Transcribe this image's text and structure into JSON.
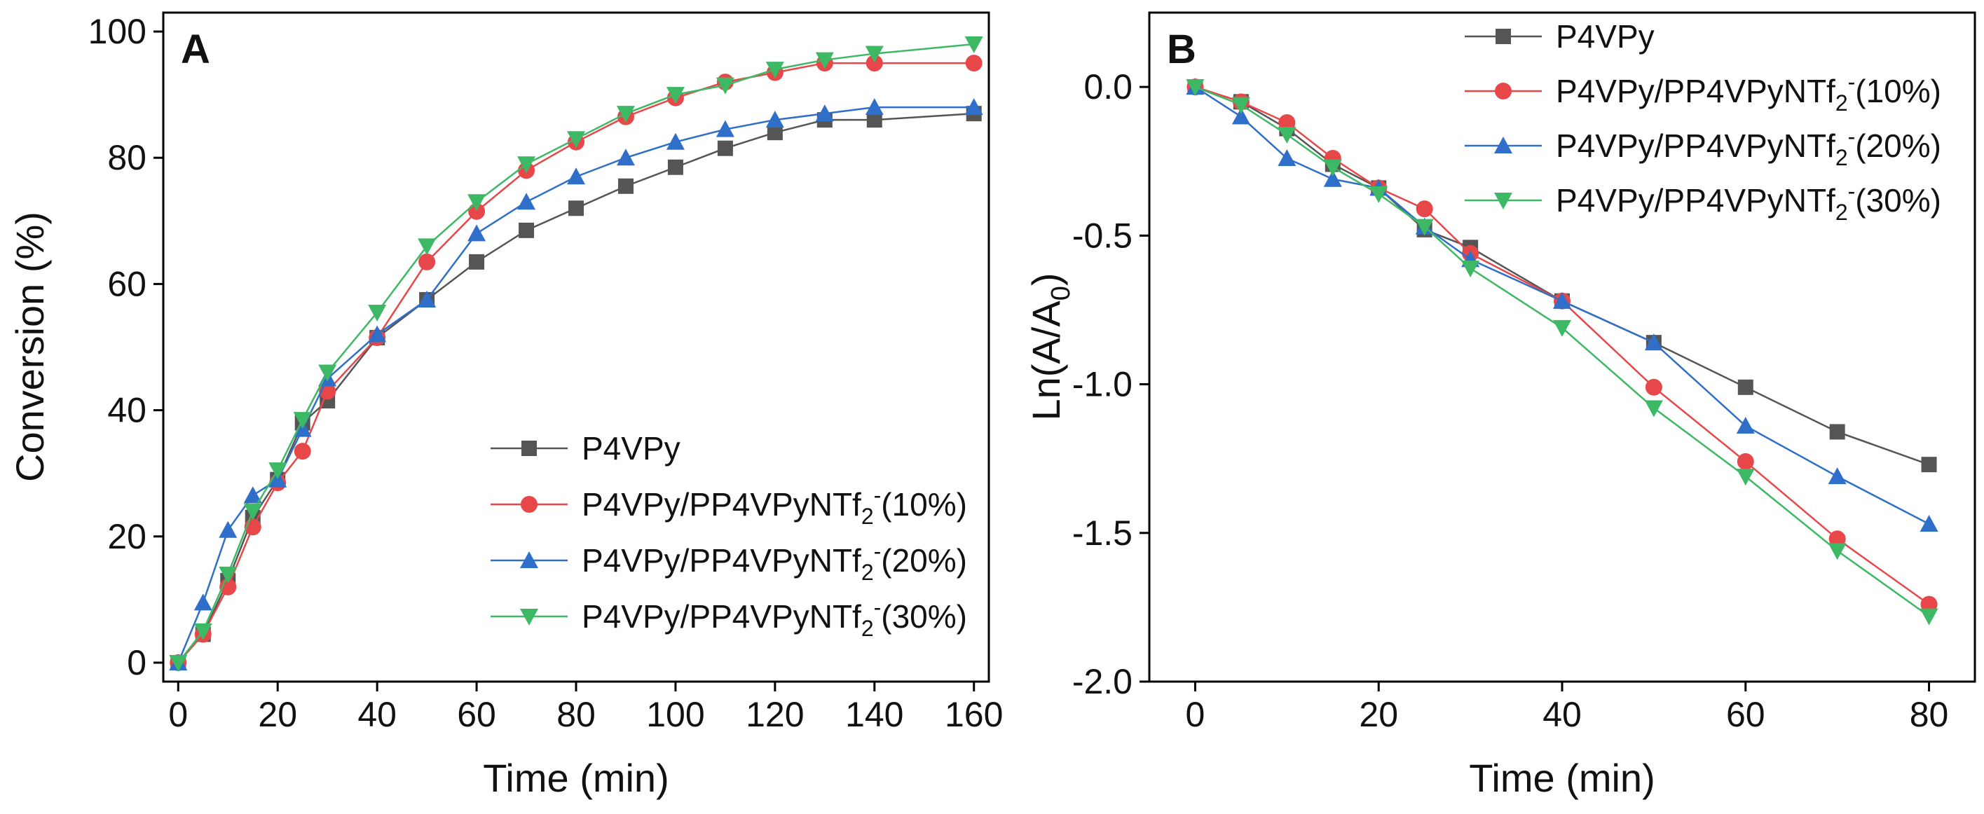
{
  "chart_data": [
    {
      "panel": "A",
      "type": "line",
      "xlabel": "Time (min)",
      "ylabel": "Conversion (%)",
      "xlim": [
        -3,
        163
      ],
      "ylim": [
        -3,
        103
      ],
      "xticks": [
        0,
        20,
        40,
        60,
        80,
        100,
        120,
        140,
        160
      ],
      "yticks": [
        0,
        20,
        40,
        60,
        80,
        100
      ],
      "x_tick_labels": [
        "0",
        "20",
        "40",
        "60",
        "80",
        "100",
        "120",
        "140",
        "160"
      ],
      "y_tick_labels": [
        "0",
        "20",
        "40",
        "60",
        "80",
        "100"
      ],
      "legend_position": "bottom-right",
      "x": [
        0,
        5,
        10,
        15,
        20,
        25,
        30,
        40,
        50,
        60,
        70,
        80,
        90,
        100,
        110,
        120,
        130,
        140,
        160
      ],
      "series": [
        {
          "name": "P4VPy",
          "legend_main": "P4VPy",
          "legend_sup": "",
          "legend_tail": "",
          "color": "#555555",
          "marker": "square",
          "values": [
            0,
            4.5,
            13,
            23,
            29,
            38,
            41.5,
            51.5,
            57.5,
            63.5,
            68.5,
            72,
            75.5,
            78.5,
            81.5,
            84,
            86,
            86,
            87
          ]
        },
        {
          "name": "P4VPy/PP4VPyNTf2-(10%)",
          "legend_main": "P4VPy/PP4VPyNTf",
          "legend_sup": "-",
          "legend_tail": "(10%)",
          "color": "#e8474a",
          "marker": "circle",
          "values": [
            0,
            4.5,
            12,
            21.5,
            28.5,
            33.5,
            43,
            51.5,
            63.5,
            71.5,
            78,
            82.5,
            86.5,
            89.5,
            92,
            93.5,
            95,
            95,
            95
          ]
        },
        {
          "name": "P4VPy/PP4VPyNTf2-(20%)",
          "legend_main": "P4VPy/PP4VPyNTf",
          "legend_sup": "-",
          "legend_tail": "(20%)",
          "color": "#2f6fc9",
          "marker": "triangle-up",
          "values": [
            0,
            9.5,
            21,
            26.5,
            29,
            37,
            45,
            52,
            57.5,
            68,
            73,
            77,
            80,
            82.5,
            84.5,
            86,
            87,
            88,
            88
          ]
        },
        {
          "name": "P4VPy/PP4VPyNTf2-(30%)",
          "legend_main": "P4VPy/PP4VPyNTf",
          "legend_sup": "-",
          "legend_tail": "(30%)",
          "color": "#3db865",
          "marker": "triangle-down",
          "values": [
            0,
            5,
            14,
            24,
            30.5,
            38.5,
            46,
            55.5,
            66,
            73,
            79,
            83,
            87,
            90,
            91.5,
            94,
            95.5,
            96.5,
            98
          ]
        }
      ]
    },
    {
      "panel": "B",
      "type": "line",
      "xlabel": "Time (min)",
      "ylabel_main": "Ln(A/A",
      "ylabel_sub": "0",
      "ylabel_tail": ")",
      "xlim": [
        -5,
        85
      ],
      "ylim": [
        -2.0,
        0.25
      ],
      "xticks": [
        0,
        20,
        40,
        60,
        80
      ],
      "yticks": [
        0.0,
        -0.5,
        -1.0,
        -1.5,
        -2.0
      ],
      "x_tick_labels": [
        "0",
        "20",
        "40",
        "60",
        "80"
      ],
      "y_tick_labels": [
        "0.0",
        "-0.5",
        "-1.0",
        "-1.5",
        "-2.0"
      ],
      "legend_position": "top-right",
      "x": [
        0,
        5,
        10,
        15,
        20,
        25,
        30,
        40,
        50,
        60,
        70,
        80
      ],
      "series": [
        {
          "name": "P4VPy",
          "legend_main": "P4VPy",
          "legend_sup": "",
          "legend_tail": "",
          "color": "#555555",
          "marker": "square",
          "values": [
            0,
            -0.05,
            -0.14,
            -0.26,
            -0.34,
            -0.48,
            -0.54,
            -0.72,
            -0.86,
            -1.01,
            -1.16,
            -1.27
          ]
        },
        {
          "name": "P4VPy/PP4VPyNTf2-(10%)",
          "legend_main": "P4VPy/PP4VPyNTf",
          "legend_sup": "-",
          "legend_tail": "(10%)",
          "color": "#e8474a",
          "marker": "circle",
          "values": [
            0,
            -0.05,
            -0.12,
            -0.24,
            -0.34,
            -0.41,
            -0.56,
            -0.72,
            -1.01,
            -1.26,
            -1.52,
            -1.74
          ]
        },
        {
          "name": "P4VPy/PP4VPyNTf2-(20%)",
          "legend_main": "P4VPy/PP4VPyNTf",
          "legend_sup": "-",
          "legend_tail": "(20%)",
          "color": "#2f6fc9",
          "marker": "triangle-up",
          "values": [
            0,
            -0.1,
            -0.24,
            -0.31,
            -0.34,
            -0.47,
            -0.58,
            -0.72,
            -0.86,
            -1.14,
            -1.31,
            -1.47
          ]
        },
        {
          "name": "P4VPy/PP4VPyNTf2-(30%)",
          "legend_main": "P4VPy/PP4VPyNTf",
          "legend_sup": "-",
          "legend_tail": "(30%)",
          "color": "#3db865",
          "marker": "triangle-down",
          "values": [
            0,
            -0.06,
            -0.16,
            -0.27,
            -0.36,
            -0.47,
            -0.61,
            -0.81,
            -1.08,
            -1.31,
            -1.56,
            -1.78
          ]
        }
      ]
    }
  ]
}
